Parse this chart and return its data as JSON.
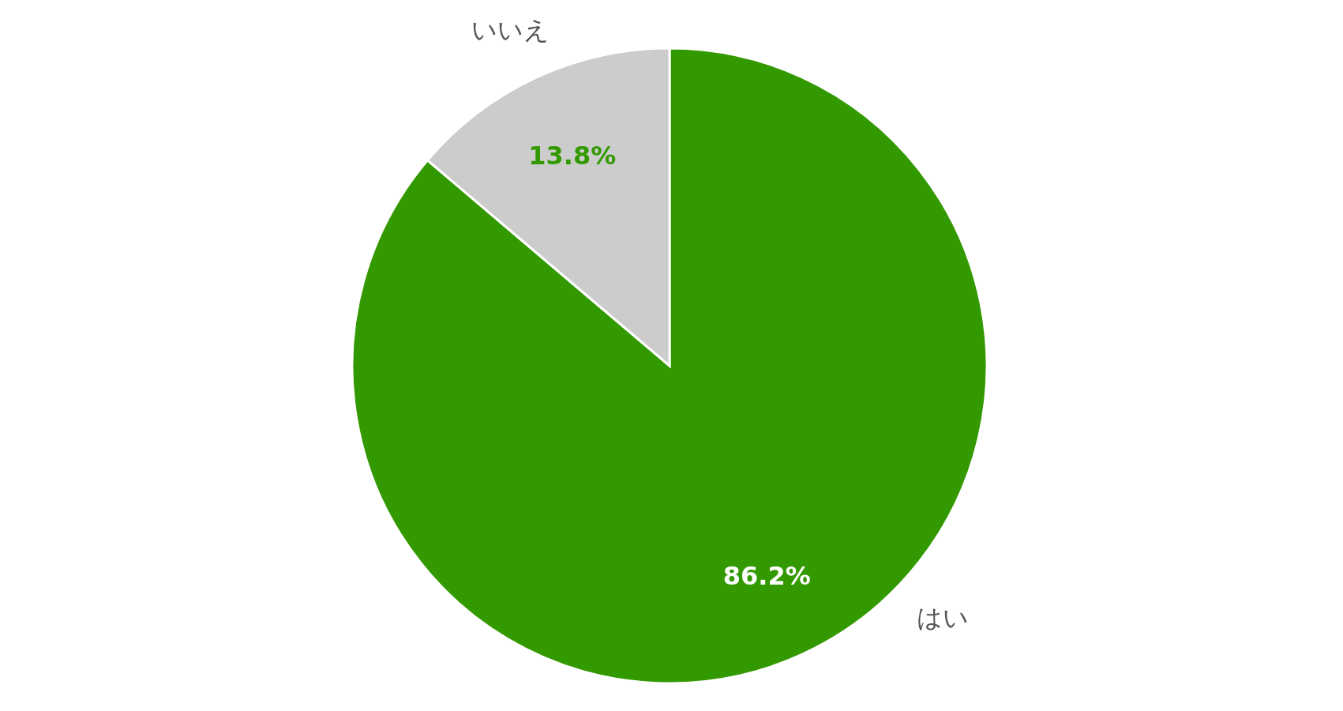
{
  "chart_data": {
    "type": "pie",
    "categories": [
      "はい",
      "いいえ"
    ],
    "values": [
      86.2,
      13.8
    ],
    "colors": [
      "#339900",
      "#cccccc"
    ],
    "value_labels": [
      "86.2%",
      "13.8%"
    ],
    "legend": false
  }
}
